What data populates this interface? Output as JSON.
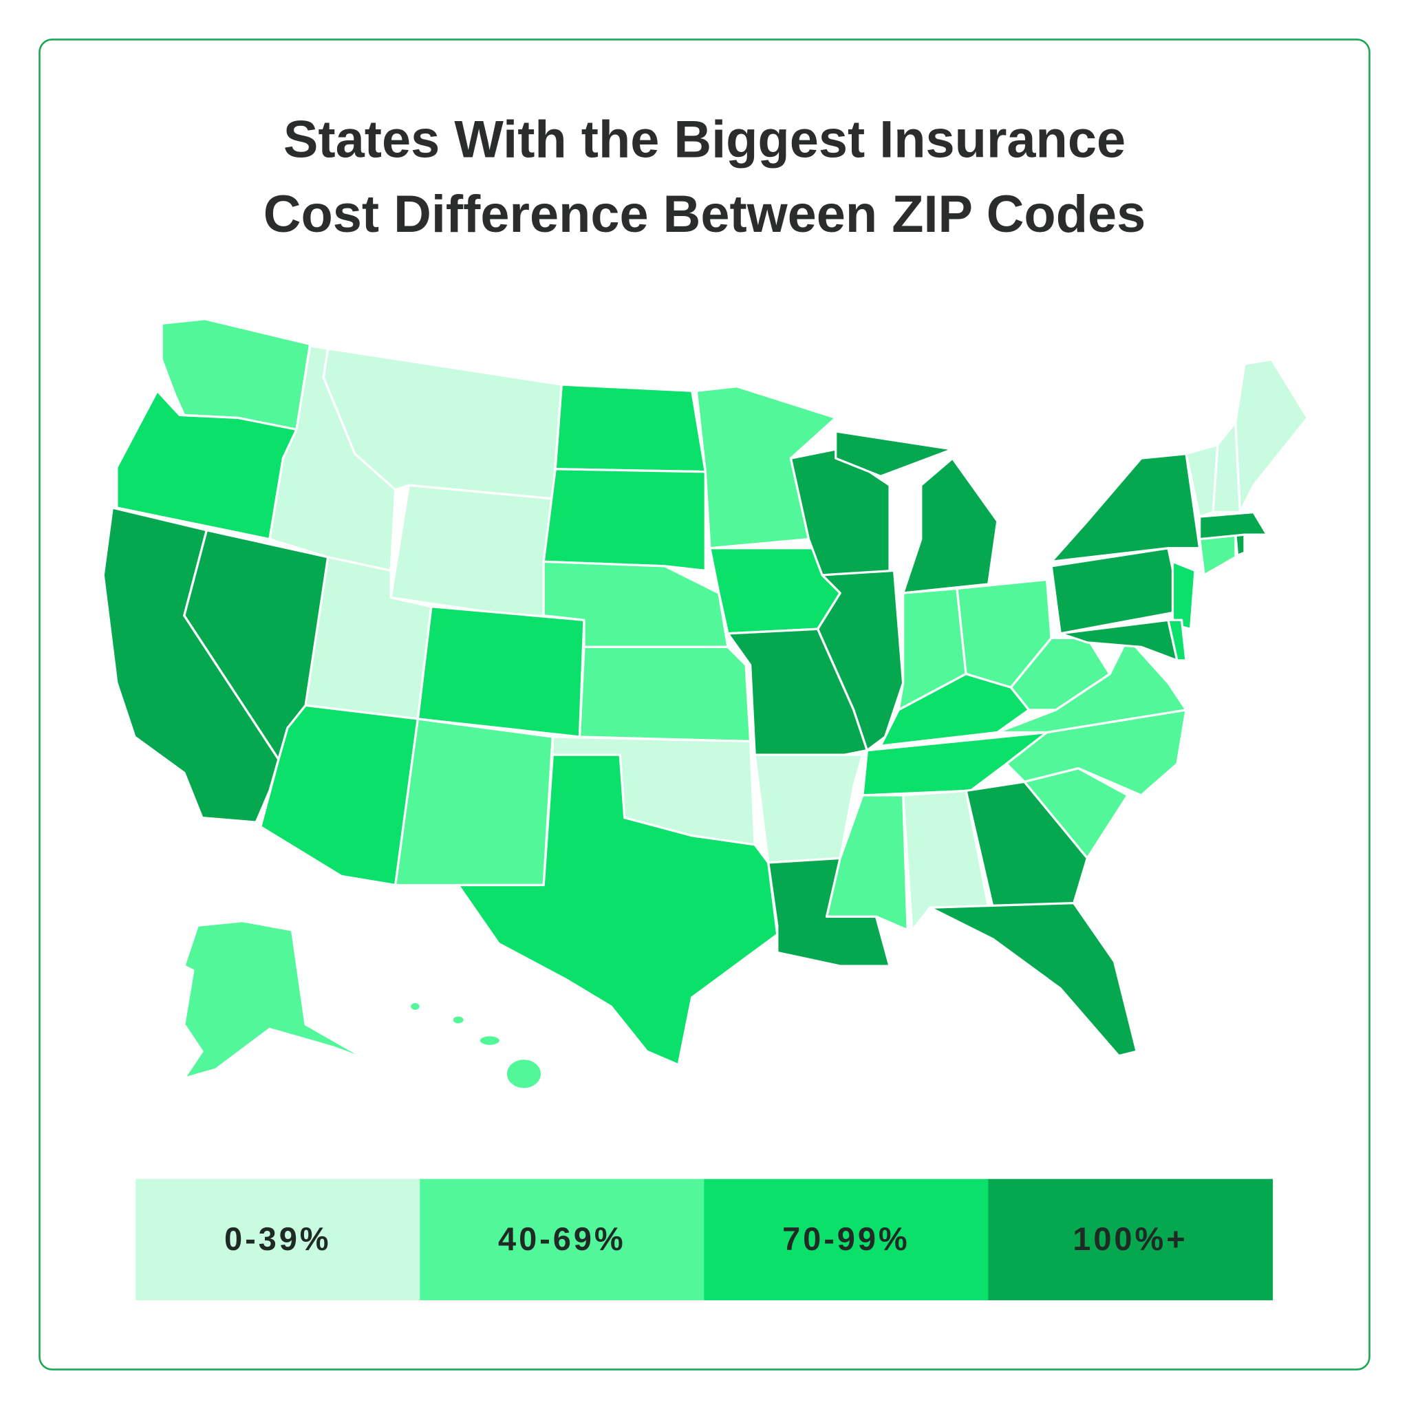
{
  "title": [
    "States With the Biggest Insurance",
    "Cost Difference Between ZIP Codes"
  ],
  "legend": [
    {
      "label": "0-39%",
      "color": "#c8fbe0"
    },
    {
      "label": "40-69%",
      "color": "#52f79a"
    },
    {
      "label": "70-99%",
      "color": "#0ae06a"
    },
    {
      "label": "100%+",
      "color": "#05a84f"
    }
  ]
}
